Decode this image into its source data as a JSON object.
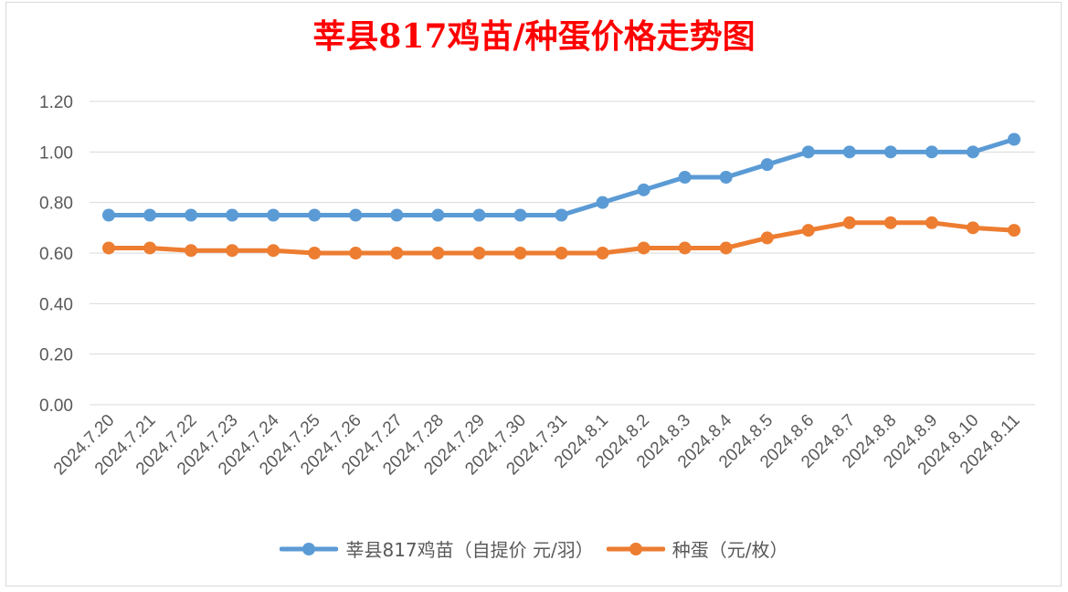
{
  "chart_data": {
    "type": "line",
    "title": "莘县817鸡苗/种蛋价格走势图",
    "categories": [
      "2024.7.20",
      "2024.7.21",
      "2024.7.22",
      "2024.7.23",
      "2024.7.24",
      "2024.7.25",
      "2024.7.26",
      "2024.7.27",
      "2024.7.28",
      "2024.7.29",
      "2024.7.30",
      "2024.7.31",
      "2024.8.1",
      "2024.8.2",
      "2024.8.3",
      "2024.8.4",
      "2024.8.5",
      "2024.8.6",
      "2024.8.7",
      "2024.8.8",
      "2024.8.9",
      "2024.8.10",
      "2024.8.11"
    ],
    "series": [
      {
        "name": "莘县817鸡苗（自提价 元/羽）",
        "color": "#5b9bd5",
        "values": [
          0.75,
          0.75,
          0.75,
          0.75,
          0.75,
          0.75,
          0.75,
          0.75,
          0.75,
          0.75,
          0.75,
          0.75,
          0.8,
          0.85,
          0.9,
          0.9,
          0.95,
          1.0,
          1.0,
          1.0,
          1.0,
          1.0,
          1.05
        ]
      },
      {
        "name": "种蛋（元/枚）",
        "color": "#ed7d31",
        "values": [
          0.62,
          0.62,
          0.61,
          0.61,
          0.61,
          0.6,
          0.6,
          0.6,
          0.6,
          0.6,
          0.6,
          0.6,
          0.6,
          0.62,
          0.62,
          0.62,
          0.66,
          0.69,
          0.72,
          0.72,
          0.72,
          0.7,
          0.69
        ]
      }
    ],
    "ylim": [
      0,
      1.2
    ],
    "yticks": [
      "0.00",
      "0.20",
      "0.40",
      "0.60",
      "0.80",
      "1.00",
      "1.20"
    ],
    "xlabel": "",
    "ylabel": "",
    "grid": true,
    "legend_position": "bottom",
    "title_color": "#ff0000",
    "gridline_color": "#d9d9d9",
    "tick_label_color": "#595959"
  }
}
